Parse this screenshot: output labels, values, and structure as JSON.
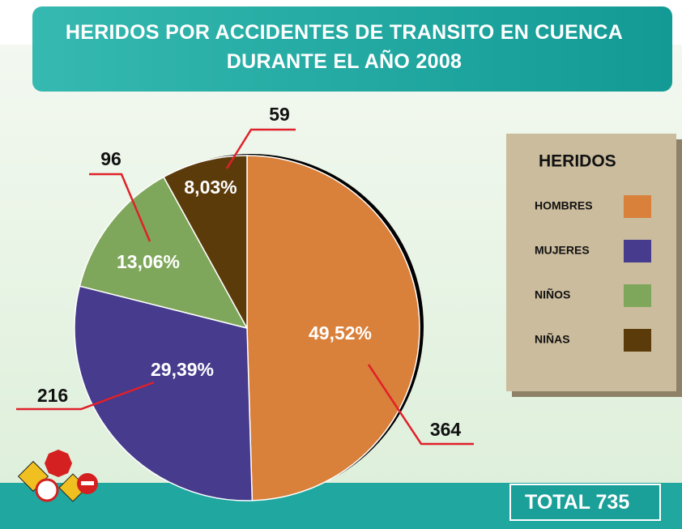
{
  "chart_data": {
    "type": "pie",
    "title": "HERIDOS POR ACCIDENTES DE TRANSITO EN CUENCA DURANTE EL AÑO 2008",
    "categories": [
      "HOMBRES",
      "MUJERES",
      "NIÑOS",
      "NIÑAS"
    ],
    "values": [
      364,
      216,
      96,
      59
    ],
    "percent_labels": [
      "49,52%",
      "29,39%",
      "13,06%",
      "8,03%"
    ],
    "colors": [
      "#d9803a",
      "#463b8c",
      "#7fa75b",
      "#5c3b0b"
    ],
    "legend_title": "HERIDOS",
    "legend": "right",
    "total_label": "TOTAL",
    "total": 735
  }
}
